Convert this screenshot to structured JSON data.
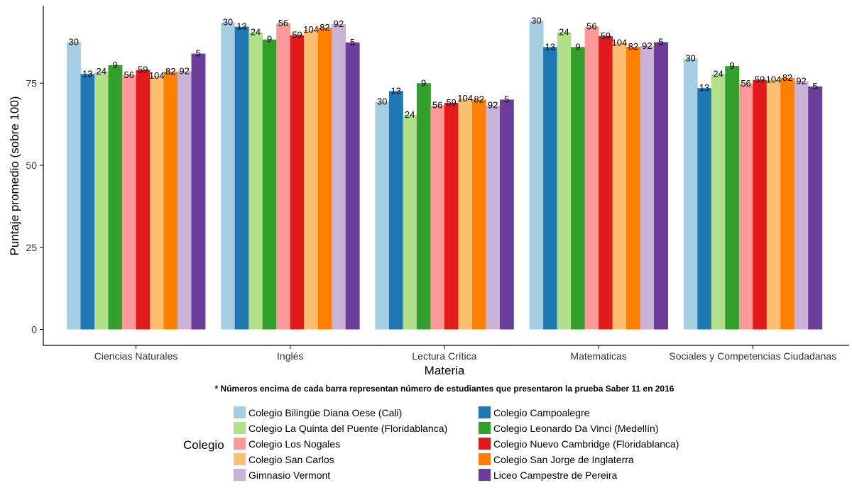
{
  "chart_data": {
    "type": "bar",
    "xlabel": "Materia",
    "ylabel": "Puntaje promedio (sobre 100)",
    "ylim": [
      0,
      96
    ],
    "yticks": [
      0,
      25,
      50,
      75
    ],
    "grid": false,
    "legend_position": "bottom",
    "legend_title": "Colegio",
    "footnote": "* Números encima de cada barra representan número de estudiantes que presentaron la prueba Saber 11 en 2016",
    "categories": [
      "Ciencias Naturales",
      "Inglés",
      "Lectura Crítica",
      "Matematicas",
      "Sociales y Competencias Ciudadanas"
    ],
    "series": [
      {
        "name": "Colegio Bilingüe Diana Oese (Cali)",
        "color": "#a6cee3",
        "label": "30",
        "values": [
          87.5,
          93.5,
          69.3,
          94,
          82.5
        ]
      },
      {
        "name": "Colegio Campoalegre",
        "color": "#1f78b4",
        "label": "13",
        "values": [
          77.8,
          92.2,
          72.6,
          86,
          73.5
        ]
      },
      {
        "name": "Colegio La Quinta del Puente (Floridablanca)",
        "color": "#b2df8a",
        "label": "24",
        "values": [
          78.5,
          90.5,
          65.3,
          90.5,
          77.8
        ]
      },
      {
        "name": "Colegio Leonardo Da Vinci (Medellín)",
        "color": "#33a02c",
        "label": "9",
        "values": [
          80.5,
          88.3,
          75,
          86,
          80.2
        ]
      },
      {
        "name": "Colegio Los Nogales",
        "color": "#fb9a99",
        "label": "56",
        "values": [
          77.4,
          93.2,
          68.2,
          92.2,
          74.8
        ]
      },
      {
        "name": "Colegio Nuevo Cambridge (Floridablanca)",
        "color": "#e31a1c",
        "label": "59",
        "values": [
          79,
          89.6,
          69,
          89.3,
          76
        ]
      },
      {
        "name": "Colegio San Carlos",
        "color": "#fdbf6f",
        "label": "104",
        "values": [
          77.2,
          91.2,
          70.3,
          87.3,
          76
        ]
      },
      {
        "name": "Colegio San Jorge de Inglaterra",
        "color": "#ff7f00",
        "label": "82",
        "values": [
          78.5,
          91.9,
          70,
          86.1,
          76.6
        ]
      },
      {
        "name": "Gimnasio Vermont",
        "color": "#cab2d6",
        "label": "92",
        "values": [
          78.6,
          93,
          68.2,
          86.3,
          75.6
        ]
      },
      {
        "name": "Liceo Campestre de Pereira",
        "color": "#6a3d9a",
        "label": "5",
        "values": [
          84,
          87.4,
          70,
          87.5,
          74
        ]
      }
    ]
  }
}
